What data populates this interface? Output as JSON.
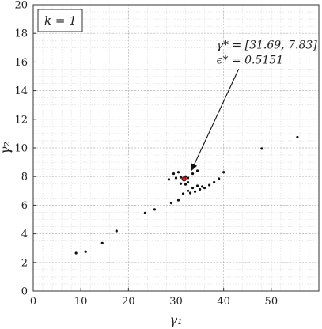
{
  "chart_data": {
    "type": "scatter",
    "title": "",
    "xlabel": "γ₁",
    "ylabel": "γ₂",
    "xlim": [
      0,
      60
    ],
    "ylim": [
      0,
      20
    ],
    "xticks": [
      0,
      10,
      20,
      30,
      40,
      50
    ],
    "yticks": [
      0,
      2,
      4,
      6,
      8,
      10,
      12,
      14,
      16,
      18,
      20
    ],
    "minor_grid_step_x": 2,
    "minor_grid_step_y": 0.5,
    "grid": true,
    "legend_box": {
      "text": "k = 1",
      "position": "top-left"
    },
    "series": [
      {
        "points": [
          [
            9.0,
            2.65
          ],
          [
            11.0,
            2.75
          ],
          [
            14.5,
            3.35
          ],
          [
            17.5,
            4.2
          ],
          [
            23.5,
            5.45
          ],
          [
            25.5,
            5.7
          ],
          [
            29.0,
            6.15
          ],
          [
            30.5,
            6.35
          ],
          [
            31.5,
            6.8
          ],
          [
            32.5,
            7.0
          ],
          [
            33.0,
            6.85
          ],
          [
            33.5,
            7.2
          ],
          [
            34.0,
            6.95
          ],
          [
            34.5,
            7.35
          ],
          [
            35.0,
            7.1
          ],
          [
            35.5,
            7.3
          ],
          [
            36.0,
            7.2
          ],
          [
            37.0,
            7.4
          ],
          [
            38.0,
            7.6
          ],
          [
            39.0,
            7.85
          ],
          [
            40.0,
            8.3
          ],
          [
            28.5,
            7.8
          ],
          [
            29.5,
            8.2
          ],
          [
            30.5,
            8.3
          ],
          [
            31.0,
            7.5
          ],
          [
            32.0,
            7.45
          ],
          [
            32.5,
            7.6
          ],
          [
            33.5,
            8.2
          ],
          [
            34.5,
            8.4
          ],
          [
            30.0,
            7.9
          ],
          [
            31.0,
            7.95
          ],
          [
            32.0,
            8.0
          ],
          [
            32.5,
            7.9
          ],
          [
            48.0,
            9.95
          ],
          [
            55.5,
            10.75
          ]
        ]
      }
    ],
    "highlight": {
      "x": 31.69,
      "y": 7.83
    },
    "annotation": {
      "line1": "γ* = [31.69, 7.83]",
      "line2": "ϵ* = 0.5151",
      "text_at": [
        38.5,
        16.5
      ]
    }
  }
}
